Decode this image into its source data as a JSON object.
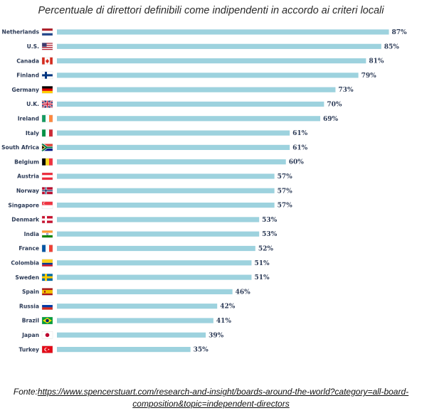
{
  "chart_data": {
    "type": "bar",
    "orientation": "horizontal",
    "title": "Percentuale di direttori definibili come indipendenti in accordo ai criteri locali",
    "categories": [
      "Netherlands",
      "U.S.",
      "Canada",
      "Finland",
      "Germany",
      "U.K.",
      "Ireland",
      "Italy",
      "South Africa",
      "Belgium",
      "Austria",
      "Norway",
      "Singapore",
      "Denmark",
      "India",
      "France",
      "Colombia",
      "Sweden",
      "Spain",
      "Russia",
      "Brazil",
      "Japan",
      "Turkey"
    ],
    "values": [
      87,
      85,
      81,
      79,
      73,
      70,
      69,
      61,
      61,
      60,
      57,
      57,
      57,
      53,
      53,
      52,
      51,
      51,
      46,
      42,
      41,
      39,
      35
    ],
    "value_labels": [
      "87%",
      "85%",
      "81%",
      "79%",
      "73%",
      "70%",
      "69%",
      "61%",
      "61%",
      "60%",
      "57%",
      "57%",
      "57%",
      "53%",
      "53%",
      "52%",
      "51%",
      "51%",
      "46%",
      "42%",
      "41%",
      "39%",
      "35%"
    ],
    "flags": [
      "netherlands-flag",
      "us-flag",
      "canada-flag",
      "finland-flag",
      "germany-flag",
      "uk-flag",
      "ireland-flag",
      "italy-flag",
      "south-africa-flag",
      "belgium-flag",
      "austria-flag",
      "norway-flag",
      "singapore-flag",
      "denmark-flag",
      "india-flag",
      "france-flag",
      "colombia-flag",
      "sweden-flag",
      "spain-flag",
      "russia-flag",
      "brazil-flag",
      "japan-flag",
      "turkey-flag"
    ],
    "xlim": [
      0,
      100
    ],
    "grid": false,
    "bar_color": "#9dd2de"
  },
  "source": {
    "prefix": "Fonte:",
    "link_line1": "https://www.spencerstuart.com/research-and-insight/boards-around-the-world?category=all-board-",
    "link_line2": "composition&topic=independent-directors"
  }
}
